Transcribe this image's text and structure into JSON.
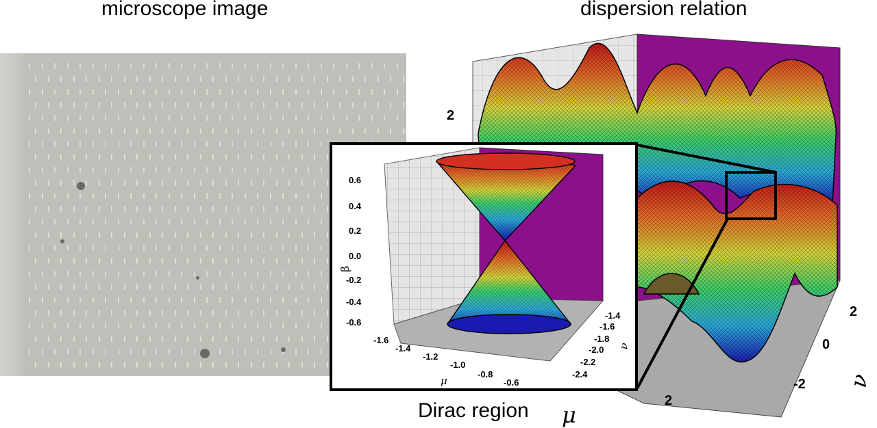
{
  "left_panel": {
    "title": "microscope image"
  },
  "right_panel": {
    "title": "dispersion relation",
    "axis_ticks": {
      "vertical": [
        "2"
      ],
      "nu": [
        "2",
        "0",
        "-2"
      ],
      "mu": [
        "2"
      ]
    },
    "mu_symbol": "μ",
    "nu_symbol": "ν",
    "surface_colormap": [
      "#1a1ab0",
      "#2aa6d6",
      "#3ccc6a",
      "#d2d23a",
      "#e06a28",
      "#c01818"
    ],
    "wall_color": "#8c0f8c"
  },
  "inset": {
    "caption": "Dirac region",
    "y_label": "β",
    "x_label": "μ",
    "z_label": "ν",
    "beta_ticks": [
      "0.6",
      "0.4",
      "0.2",
      "0.0",
      "-0.2",
      "-0.4",
      "-0.6"
    ],
    "mu_ticks": [
      "-1.6",
      "-1.4",
      "-1.2",
      "-1.0",
      "-0.8",
      "-0.6"
    ],
    "nu_ticks": [
      "-1.4",
      "-1.6",
      "-1.8",
      "-2.0",
      "-2.2",
      "-2.4"
    ]
  }
}
